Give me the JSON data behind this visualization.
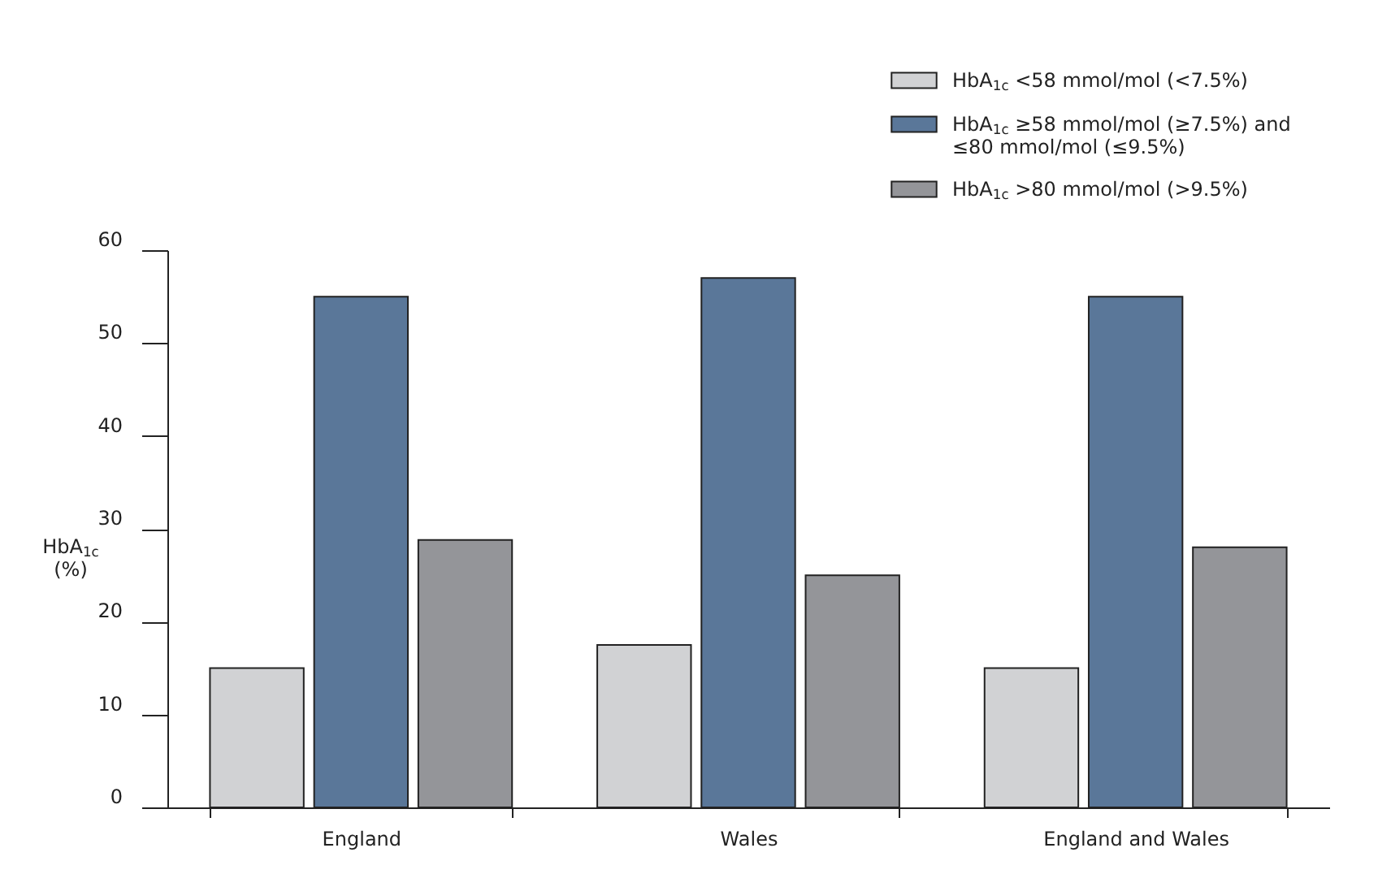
{
  "chart_data": {
    "type": "bar",
    "ylabel": "HbA$_{1c}$ (%)",
    "categories": [
      "England",
      "Wales",
      "England and Wales"
    ],
    "series": [
      {
        "name": "HbA$_{1c}$ <58 mmol/mol (<7.5%)",
        "color": "#d1d2d4",
        "values": [
          15,
          17.5,
          15
        ]
      },
      {
        "name": "HbA$_{1c}$ ≥58 mmol/mol (≥7.5%) and ≤80 mmol/mol (≤9.5%)",
        "color": "#5a7799",
        "values": [
          55,
          57,
          55
        ]
      },
      {
        "name": "HbA$_{1c}$ >80 mmol/mol (>9.5%)",
        "color": "#949599",
        "values": [
          28.8,
          25,
          28
        ]
      }
    ],
    "ylim": [
      0,
      60
    ],
    "yticks": [
      0,
      10,
      20,
      30,
      40,
      50,
      60
    ],
    "legend": "top right"
  }
}
